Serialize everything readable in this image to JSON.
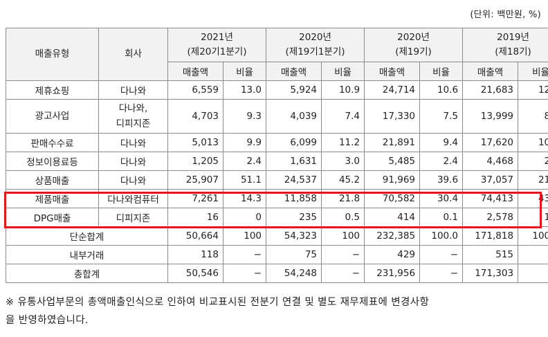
{
  "unit": "(단위: 백만원, %)",
  "header": {
    "type": "매출유형",
    "company": "회사",
    "periods": [
      {
        "year": "2021년",
        "sub": "(제20기1분기)"
      },
      {
        "year": "2020년",
        "sub": "(제19기1분기)"
      },
      {
        "year": "2020년",
        "sub": "(제19기)"
      },
      {
        "year": "2019년",
        "sub": "(제18기)"
      }
    ],
    "sales": "매출액",
    "ratio": "비율"
  },
  "rows": [
    {
      "type": "제휴쇼핑",
      "company": "다나와",
      "vals": [
        "6,559",
        "13.0",
        "5,924",
        "10.9",
        "24,714",
        "10.6",
        "21,683",
        "12.6"
      ]
    },
    {
      "type": "광고사업",
      "company": "다나와,",
      "company2": "디피지존",
      "vals": [
        "4,703",
        "9.3",
        "4,039",
        "7.4",
        "17,330",
        "7.5",
        "13,999",
        "8.1"
      ]
    },
    {
      "type": "판매수수료",
      "company": "다나와",
      "vals": [
        "5,013",
        "9.9",
        "6,099",
        "11.2",
        "21,891",
        "9.4",
        "17,620",
        "10.3"
      ]
    },
    {
      "type": "정보이용료등",
      "company": "다나와",
      "vals": [
        "1,205",
        "2.4",
        "1,631",
        "3.0",
        "5,485",
        "2.4",
        "4,468",
        "2.6"
      ]
    },
    {
      "type": "상품매출",
      "company": "다나와",
      "vals": [
        "25,907",
        "51.1",
        "24,537",
        "45.2",
        "91,969",
        "39.6",
        "37,057",
        "21.6"
      ]
    },
    {
      "type": "제품매출",
      "company": "다나와컴퓨터",
      "vals": [
        "7,261",
        "14.3",
        "11,858",
        "21.8",
        "70,582",
        "30.4",
        "74,413",
        "43.3"
      ]
    },
    {
      "type": "DPG매출",
      "company": "디피지존",
      "vals": [
        "16",
        "0",
        "235",
        "0.5",
        "414",
        "0.1",
        "2,578",
        "1.5"
      ]
    }
  ],
  "summary": [
    {
      "label": "단순합계",
      "vals": [
        "50,664",
        "100",
        "54,323",
        "100",
        "232,385",
        "100.0",
        "171,818",
        "100.0"
      ]
    },
    {
      "label": "내부거래",
      "vals": [
        "118",
        "−",
        "75",
        "−",
        "429",
        "−",
        "515",
        "−"
      ]
    },
    {
      "label": "총합계",
      "vals": [
        "50,546",
        "−",
        "54,248",
        "−",
        "231,956",
        "−",
        "171,303",
        "−"
      ]
    }
  ],
  "highlight_color": "#e8141c",
  "note": {
    "line1": "※ 유통사업부문의 총액매출인식으로 인하여 비교표시된 전분기 연결 및 별도 재무제표에 변경사항",
    "line2": "을 반영하였습니다."
  }
}
